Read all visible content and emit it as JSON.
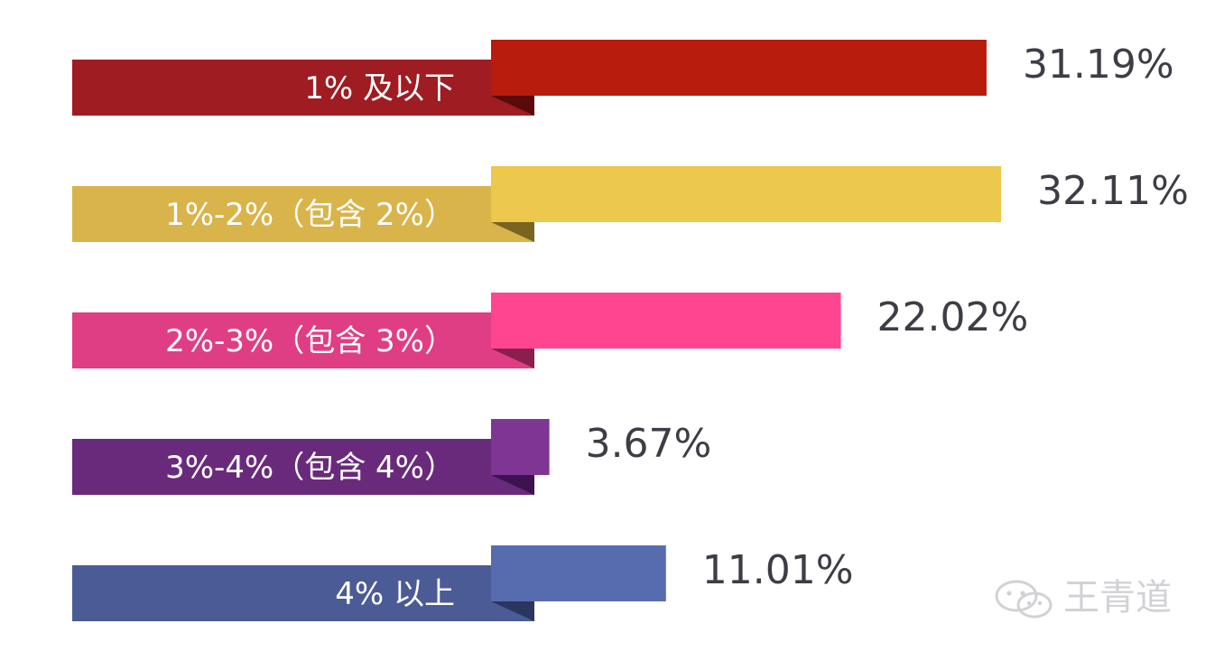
{
  "chart_data": {
    "type": "bar",
    "orientation": "horizontal",
    "categories": [
      "1% 及以下",
      "1%-2%（包含 2%）",
      "2%-3%（包含 3%）",
      "3%-4%（包含 4%）",
      "4% 以上"
    ],
    "values": [
      31.19,
      32.11,
      22.02,
      3.67,
      11.01
    ],
    "value_labels": [
      "31.19%",
      "32.11%",
      "22.02%",
      "3.67%",
      "11.01%"
    ],
    "colors": [
      "#b71c0d",
      "#ecc84d",
      "#ff4590",
      "#7e3594",
      "#576cae"
    ],
    "label_colors": [
      "#9e1c22",
      "#d8b44a",
      "#e03e84",
      "#6a2a7c",
      "#4b5b95"
    ],
    "fold_colors": [
      "#5a0a08",
      "#7a6420",
      "#8a1e4c",
      "#3d1250",
      "#2a3560"
    ],
    "title": "",
    "xlabel": "",
    "ylabel": "",
    "grid": false,
    "legend": "none"
  },
  "watermark": {
    "icon": "wechat-icon",
    "text": "王青道"
  }
}
